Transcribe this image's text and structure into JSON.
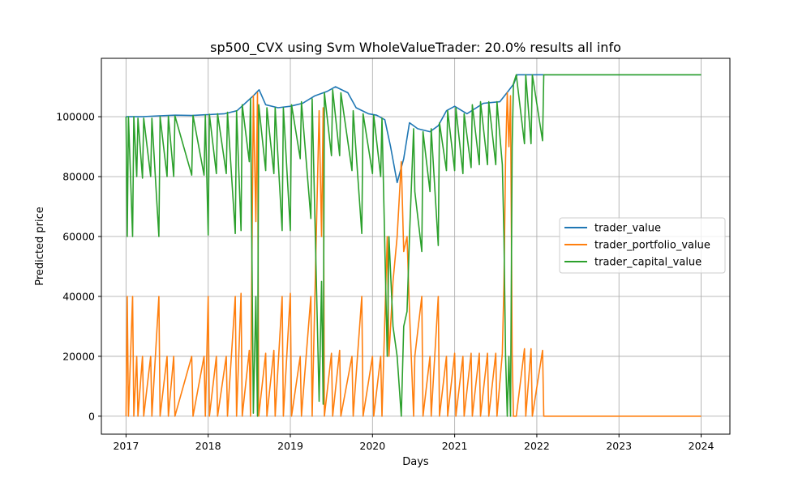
{
  "chart_data": {
    "type": "line",
    "title": "sp500_CVX using Svm WholeValueTrader: 20.0% results all info",
    "xlabel": "Days",
    "ylabel": "Predicted price",
    "xlim": [
      2016.7,
      2024.35
    ],
    "ylim": [
      -6000,
      119500
    ],
    "x_ticks": [
      2017,
      2018,
      2019,
      2020,
      2021,
      2022,
      2023,
      2024
    ],
    "x_tick_labels": [
      "2017",
      "2018",
      "2019",
      "2020",
      "2021",
      "2022",
      "2023",
      "2024"
    ],
    "y_ticks": [
      0,
      20000,
      40000,
      60000,
      80000,
      100000
    ],
    "y_tick_labels": [
      "0",
      "20000",
      "40000",
      "60000",
      "80000",
      "100000"
    ],
    "grid": true,
    "legend_position": "center-right",
    "series": [
      {
        "name": "trader_value",
        "color": "#1f77b4",
        "points": [
          [
            2017.0,
            100000
          ],
          [
            2017.2,
            100000
          ],
          [
            2017.4,
            100300
          ],
          [
            2017.6,
            100500
          ],
          [
            2017.8,
            100400
          ],
          [
            2018.0,
            100700
          ],
          [
            2018.2,
            101000
          ],
          [
            2018.35,
            102000
          ],
          [
            2018.45,
            104500
          ],
          [
            2018.55,
            107000
          ],
          [
            2018.62,
            109000
          ],
          [
            2018.7,
            104000
          ],
          [
            2018.85,
            103000
          ],
          [
            2019.0,
            103500
          ],
          [
            2019.15,
            104500
          ],
          [
            2019.3,
            107000
          ],
          [
            2019.45,
            108500
          ],
          [
            2019.55,
            110000
          ],
          [
            2019.7,
            108000
          ],
          [
            2019.8,
            103000
          ],
          [
            2019.95,
            101000
          ],
          [
            2020.05,
            100500
          ],
          [
            2020.15,
            99000
          ],
          [
            2020.22,
            90000
          ],
          [
            2020.3,
            78000
          ],
          [
            2020.38,
            86000
          ],
          [
            2020.45,
            98000
          ],
          [
            2020.55,
            96000
          ],
          [
            2020.7,
            95000
          ],
          [
            2020.8,
            97000
          ],
          [
            2020.9,
            102000
          ],
          [
            2021.0,
            103500
          ],
          [
            2021.15,
            101000
          ],
          [
            2021.35,
            104500
          ],
          [
            2021.55,
            105000
          ],
          [
            2021.65,
            108500
          ],
          [
            2021.72,
            111000
          ],
          [
            2021.76,
            114000
          ],
          [
            2024.0,
            114000
          ]
        ]
      },
      {
        "name": "trader_portfolio_value",
        "color": "#ff7f0e",
        "points": [
          [
            2017.0,
            0
          ],
          [
            2017.015,
            40000
          ],
          [
            2017.03,
            0
          ],
          [
            2017.08,
            40000
          ],
          [
            2017.095,
            0
          ],
          [
            2017.13,
            20000
          ],
          [
            2017.145,
            0
          ],
          [
            2017.2,
            20000
          ],
          [
            2017.215,
            0
          ],
          [
            2017.3,
            20000
          ],
          [
            2017.315,
            0
          ],
          [
            2017.4,
            40000
          ],
          [
            2017.415,
            0
          ],
          [
            2017.5,
            20000
          ],
          [
            2017.515,
            0
          ],
          [
            2017.58,
            20000
          ],
          [
            2017.595,
            0
          ],
          [
            2017.8,
            20000
          ],
          [
            2017.815,
            0
          ],
          [
            2017.95,
            20000
          ],
          [
            2017.965,
            0
          ],
          [
            2018.0,
            40000
          ],
          [
            2018.015,
            0
          ],
          [
            2018.1,
            20000
          ],
          [
            2018.115,
            0
          ],
          [
            2018.22,
            20000
          ],
          [
            2018.235,
            0
          ],
          [
            2018.33,
            40000
          ],
          [
            2018.345,
            0
          ],
          [
            2018.4,
            41000
          ],
          [
            2018.415,
            0
          ],
          [
            2018.5,
            22000
          ],
          [
            2018.515,
            0
          ],
          [
            2018.55,
            107000
          ],
          [
            2018.58,
            65000
          ],
          [
            2018.6,
            108000
          ],
          [
            2018.615,
            0
          ],
          [
            2018.7,
            21000
          ],
          [
            2018.715,
            0
          ],
          [
            2018.8,
            22000
          ],
          [
            2018.815,
            0
          ],
          [
            2018.9,
            40000
          ],
          [
            2018.915,
            0
          ],
          [
            2019.0,
            41000
          ],
          [
            2019.015,
            0
          ],
          [
            2019.12,
            20000
          ],
          [
            2019.135,
            0
          ],
          [
            2019.25,
            40000
          ],
          [
            2019.265,
            0
          ],
          [
            2019.35,
            102000
          ],
          [
            2019.38,
            60000
          ],
          [
            2019.4,
            103000
          ],
          [
            2019.415,
            0
          ],
          [
            2019.5,
            21000
          ],
          [
            2019.515,
            0
          ],
          [
            2019.6,
            22000
          ],
          [
            2019.615,
            0
          ],
          [
            2019.75,
            20000
          ],
          [
            2019.765,
            0
          ],
          [
            2019.87,
            40000
          ],
          [
            2019.885,
            0
          ],
          [
            2020.0,
            20000
          ],
          [
            2020.015,
            0
          ],
          [
            2020.1,
            20000
          ],
          [
            2020.115,
            0
          ],
          [
            2020.18,
            60000
          ],
          [
            2020.2,
            20000
          ],
          [
            2020.25,
            45000
          ],
          [
            2020.3,
            60000
          ],
          [
            2020.35,
            85000
          ],
          [
            2020.38,
            55000
          ],
          [
            2020.42,
            60000
          ],
          [
            2020.45,
            35000
          ],
          [
            2020.5,
            0
          ],
          [
            2020.515,
            20000
          ],
          [
            2020.6,
            40000
          ],
          [
            2020.615,
            0
          ],
          [
            2020.7,
            20000
          ],
          [
            2020.715,
            0
          ],
          [
            2020.8,
            40000
          ],
          [
            2020.815,
            0
          ],
          [
            2020.9,
            20000
          ],
          [
            2020.915,
            0
          ],
          [
            2021.0,
            21000
          ],
          [
            2021.015,
            0
          ],
          [
            2021.1,
            20000
          ],
          [
            2021.115,
            0
          ],
          [
            2021.2,
            21000
          ],
          [
            2021.215,
            0
          ],
          [
            2021.3,
            21000
          ],
          [
            2021.315,
            0
          ],
          [
            2021.4,
            21000
          ],
          [
            2021.415,
            0
          ],
          [
            2021.5,
            21000
          ],
          [
            2021.515,
            0
          ],
          [
            2021.58,
            21000
          ],
          [
            2021.6,
            44000
          ],
          [
            2021.62,
            86000
          ],
          [
            2021.64,
            108000
          ],
          [
            2021.66,
            90000
          ],
          [
            2021.68,
            107000
          ],
          [
            2021.7,
            21000
          ],
          [
            2021.715,
            0
          ],
          [
            2021.75,
            0
          ],
          [
            2021.85,
            22500
          ],
          [
            2021.865,
            0
          ],
          [
            2021.93,
            22500
          ],
          [
            2021.945,
            0
          ],
          [
            2022.07,
            22000
          ],
          [
            2022.085,
            0
          ],
          [
            2024.0,
            0
          ]
        ]
      },
      {
        "name": "trader_capital_value",
        "color": "#2ca02c",
        "points": [
          [
            2017.0,
            100000
          ],
          [
            2017.015,
            60000
          ],
          [
            2017.03,
            100000
          ],
          [
            2017.08,
            60000
          ],
          [
            2017.095,
            100000
          ],
          [
            2017.13,
            80000
          ],
          [
            2017.145,
            99500
          ],
          [
            2017.2,
            79500
          ],
          [
            2017.215,
            99500
          ],
          [
            2017.3,
            80000
          ],
          [
            2017.315,
            99500
          ],
          [
            2017.4,
            60000
          ],
          [
            2017.415,
            100000
          ],
          [
            2017.5,
            80000
          ],
          [
            2017.515,
            100200
          ],
          [
            2017.58,
            80000
          ],
          [
            2017.595,
            100300
          ],
          [
            2017.8,
            80500
          ],
          [
            2017.815,
            100400
          ],
          [
            2017.95,
            80500
          ],
          [
            2017.965,
            100600
          ],
          [
            2018.0,
            60500
          ],
          [
            2018.015,
            100800
          ],
          [
            2018.1,
            81000
          ],
          [
            2018.115,
            101000
          ],
          [
            2018.22,
            81000
          ],
          [
            2018.235,
            101500
          ],
          [
            2018.33,
            61000
          ],
          [
            2018.345,
            102000
          ],
          [
            2018.4,
            62000
          ],
          [
            2018.415,
            104000
          ],
          [
            2018.5,
            85000
          ],
          [
            2018.515,
            106000
          ],
          [
            2018.55,
            1000
          ],
          [
            2018.58,
            40000
          ],
          [
            2018.6,
            0
          ],
          [
            2018.615,
            104000
          ],
          [
            2018.7,
            82000
          ],
          [
            2018.715,
            103000
          ],
          [
            2018.8,
            81000
          ],
          [
            2018.815,
            103000
          ],
          [
            2018.9,
            62000
          ],
          [
            2018.915,
            103000
          ],
          [
            2019.0,
            62000
          ],
          [
            2019.015,
            104000
          ],
          [
            2019.12,
            86000
          ],
          [
            2019.135,
            105000
          ],
          [
            2019.25,
            66000
          ],
          [
            2019.265,
            106000
          ],
          [
            2019.35,
            5000
          ],
          [
            2019.38,
            45000
          ],
          [
            2019.4,
            4000
          ],
          [
            2019.415,
            108000
          ],
          [
            2019.5,
            87000
          ],
          [
            2019.515,
            109000
          ],
          [
            2019.6,
            87000
          ],
          [
            2019.615,
            108000
          ],
          [
            2019.75,
            82000
          ],
          [
            2019.765,
            102000
          ],
          [
            2019.87,
            61000
          ],
          [
            2019.885,
            101000
          ],
          [
            2020.0,
            81000
          ],
          [
            2020.015,
            100500
          ],
          [
            2020.1,
            80000
          ],
          [
            2020.115,
            99500
          ],
          [
            2020.18,
            20000
          ],
          [
            2020.2,
            60000
          ],
          [
            2020.25,
            30000
          ],
          [
            2020.3,
            20000
          ],
          [
            2020.35,
            0
          ],
          [
            2020.38,
            30000
          ],
          [
            2020.42,
            35000
          ],
          [
            2020.45,
            60000
          ],
          [
            2020.5,
            96000
          ],
          [
            2020.515,
            75000
          ],
          [
            2020.6,
            55000
          ],
          [
            2020.615,
            95000
          ],
          [
            2020.7,
            75000
          ],
          [
            2020.715,
            96000
          ],
          [
            2020.8,
            57000
          ],
          [
            2020.815,
            98000
          ],
          [
            2020.9,
            82000
          ],
          [
            2020.915,
            102000
          ],
          [
            2021.0,
            82000
          ],
          [
            2021.015,
            103000
          ],
          [
            2021.1,
            81000
          ],
          [
            2021.115,
            101000
          ],
          [
            2021.2,
            83000
          ],
          [
            2021.215,
            104000
          ],
          [
            2021.3,
            84000
          ],
          [
            2021.315,
            105000
          ],
          [
            2021.4,
            84000
          ],
          [
            2021.415,
            105000
          ],
          [
            2021.5,
            84000
          ],
          [
            2021.515,
            105000
          ],
          [
            2021.58,
            84000
          ],
          [
            2021.6,
            60000
          ],
          [
            2021.62,
            20000
          ],
          [
            2021.64,
            0
          ],
          [
            2021.66,
            20000
          ],
          [
            2021.68,
            0
          ],
          [
            2021.7,
            90000
          ],
          [
            2021.715,
            111000
          ],
          [
            2021.75,
            114000
          ],
          [
            2021.85,
            91000
          ],
          [
            2021.865,
            114000
          ],
          [
            2021.93,
            91000
          ],
          [
            2021.945,
            114000
          ],
          [
            2022.07,
            92000
          ],
          [
            2022.085,
            114000
          ],
          [
            2024.0,
            114000
          ]
        ]
      }
    ]
  }
}
